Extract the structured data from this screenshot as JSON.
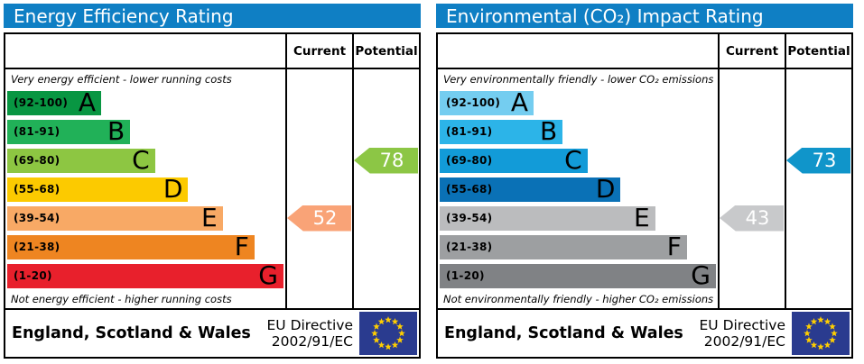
{
  "colors": {
    "header_bg": "#0f7fc4",
    "eu_flag_bg": "#2a3b8f",
    "eu_star": "#ffce00"
  },
  "panels": [
    {
      "title": "Energy Efficiency Rating",
      "columns": {
        "current": "Current",
        "potential": "Potential"
      },
      "caption_top": "Very energy efficient - lower running costs",
      "caption_bottom": "Not energy efficient - higher running costs",
      "bands": [
        {
          "letter": "A",
          "range": "(92-100)",
          "color": "#089642",
          "width_pct": 34
        },
        {
          "letter": "B",
          "range": "(81-91)",
          "color": "#21b158",
          "width_pct": 44.5
        },
        {
          "letter": "C",
          "range": "(69-80)",
          "color": "#8dc642",
          "width_pct": 53.5
        },
        {
          "letter": "D",
          "range": "(55-68)",
          "color": "#fcca00",
          "width_pct": 65.5
        },
        {
          "letter": "E",
          "range": "(39-54)",
          "color": "#f8a965",
          "width_pct": 78
        },
        {
          "letter": "F",
          "range": "(21-38)",
          "color": "#ee8521",
          "width_pct": 89.5
        },
        {
          "letter": "G",
          "range": "(1-20)",
          "color": "#e8202c",
          "width_pct": 100
        }
      ],
      "current": {
        "value": 52,
        "band_index": 4,
        "band": "E",
        "color": "#f9a377"
      },
      "potential": {
        "value": 78,
        "band_index": 2,
        "band": "C",
        "color": "#8cc645"
      },
      "footer": {
        "region": "England, Scotland & Wales",
        "directive_line1": "EU Directive",
        "directive_line2": "2002/91/EC"
      }
    },
    {
      "title": "Environmental (CO₂) Impact Rating",
      "columns": {
        "current": "Current",
        "potential": "Potential"
      },
      "caption_top": "Very environmentally friendly - lower CO₂ emissions",
      "caption_bottom": "Not environmentally friendly - higher CO₂ emissions",
      "bands": [
        {
          "letter": "A",
          "range": "(92-100)",
          "color": "#74cdf0",
          "width_pct": 34
        },
        {
          "letter": "B",
          "range": "(81-91)",
          "color": "#2cb4e8",
          "width_pct": 44.5
        },
        {
          "letter": "C",
          "range": "(69-80)",
          "color": "#129bd8",
          "width_pct": 53.5
        },
        {
          "letter": "D",
          "range": "(55-68)",
          "color": "#0a71b6",
          "width_pct": 65.5
        },
        {
          "letter": "E",
          "range": "(39-54)",
          "color": "#bbbcbe",
          "width_pct": 78
        },
        {
          "letter": "F",
          "range": "(21-38)",
          "color": "#9d9fa1",
          "width_pct": 89.5
        },
        {
          "letter": "G",
          "range": "(1-20)",
          "color": "#808285",
          "width_pct": 100
        }
      ],
      "current": {
        "value": 43,
        "band_index": 4,
        "band": "E",
        "color": "#c8c9cb"
      },
      "potential": {
        "value": 73,
        "band_index": 2,
        "band": "C",
        "color": "#1095ca"
      },
      "footer": {
        "region": "England, Scotland & Wales",
        "directive_line1": "EU Directive",
        "directive_line2": "2002/91/EC"
      }
    }
  ],
  "chart_data": [
    {
      "type": "bar",
      "title": "Energy Efficiency Rating",
      "categories": [
        "A (92-100)",
        "B (81-91)",
        "C (69-80)",
        "D (55-68)",
        "E (39-54)",
        "F (21-38)",
        "G (1-20)"
      ],
      "values": [
        34,
        44.5,
        53.5,
        65.5,
        78,
        89.5,
        100
      ],
      "values_note": "band bar widths as % of chart area (decorative EPC scale)",
      "markers": {
        "current": 52,
        "current_band": "E",
        "potential": 78,
        "potential_band": "C"
      },
      "top_label": "Very energy efficient - lower running costs",
      "bottom_label": "Not energy efficient - higher running costs",
      "footer": "England, Scotland & Wales — EU Directive 2002/91/EC"
    },
    {
      "type": "bar",
      "title": "Environmental (CO₂) Impact Rating",
      "categories": [
        "A (92-100)",
        "B (81-91)",
        "C (69-80)",
        "D (55-68)",
        "E (39-54)",
        "F (21-38)",
        "G (1-20)"
      ],
      "values": [
        34,
        44.5,
        53.5,
        65.5,
        78,
        89.5,
        100
      ],
      "values_note": "band bar widths as % of chart area (decorative EPC scale)",
      "markers": {
        "current": 43,
        "current_band": "E",
        "potential": 73,
        "potential_band": "C"
      },
      "top_label": "Very environmentally friendly - lower CO₂ emissions",
      "bottom_label": "Not environmentally friendly - higher CO₂ emissions",
      "footer": "England, Scotland & Wales — EU Directive 2002/91/EC"
    }
  ]
}
